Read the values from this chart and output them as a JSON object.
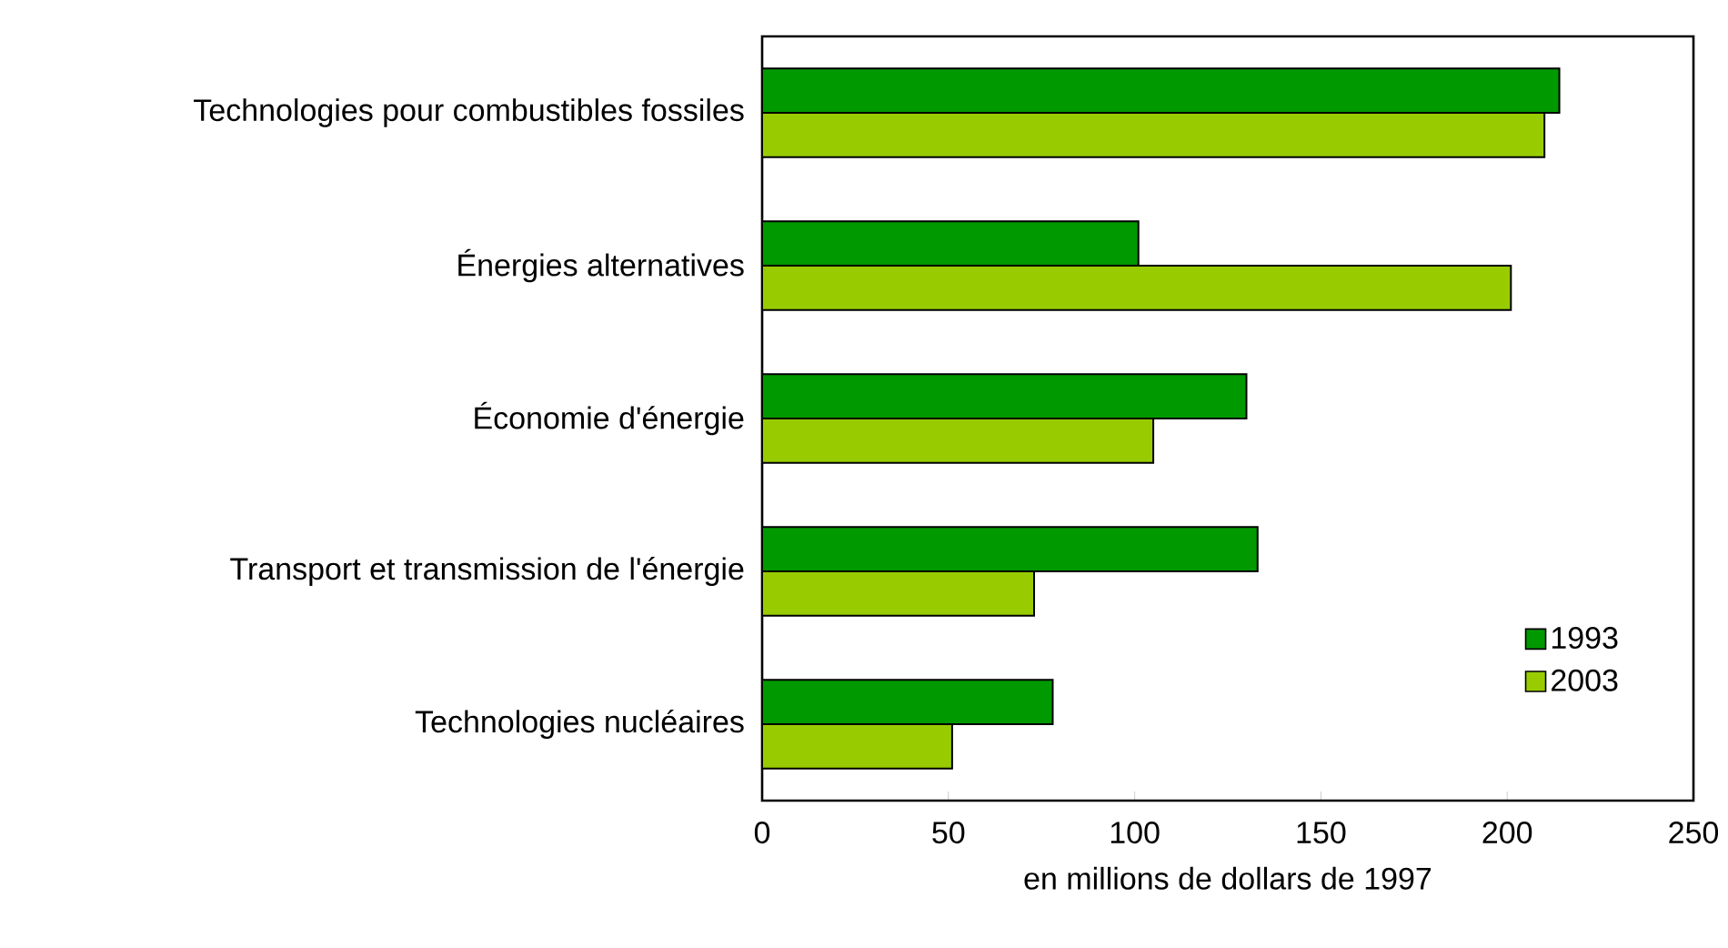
{
  "chart_data": {
    "type": "bar",
    "orientation": "horizontal",
    "categories": [
      "Technologies pour combustibles fossiles",
      "Énergies alternatives",
      "Économie d'énergie",
      "Transport et transmission de l'énergie",
      "Technologies nucléaires"
    ],
    "series": [
      {
        "name": "1993",
        "color": "#009900",
        "values": [
          214,
          101,
          130,
          133,
          78
        ]
      },
      {
        "name": "2003",
        "color": "#99cc00",
        "values": [
          210,
          201,
          105,
          73,
          51
        ]
      }
    ],
    "xlim": [
      0,
      250
    ],
    "xticks": [
      0,
      50,
      100,
      150,
      200,
      250
    ],
    "xlabel": "en millions de dollars de 1997",
    "legend": "bottom right"
  }
}
